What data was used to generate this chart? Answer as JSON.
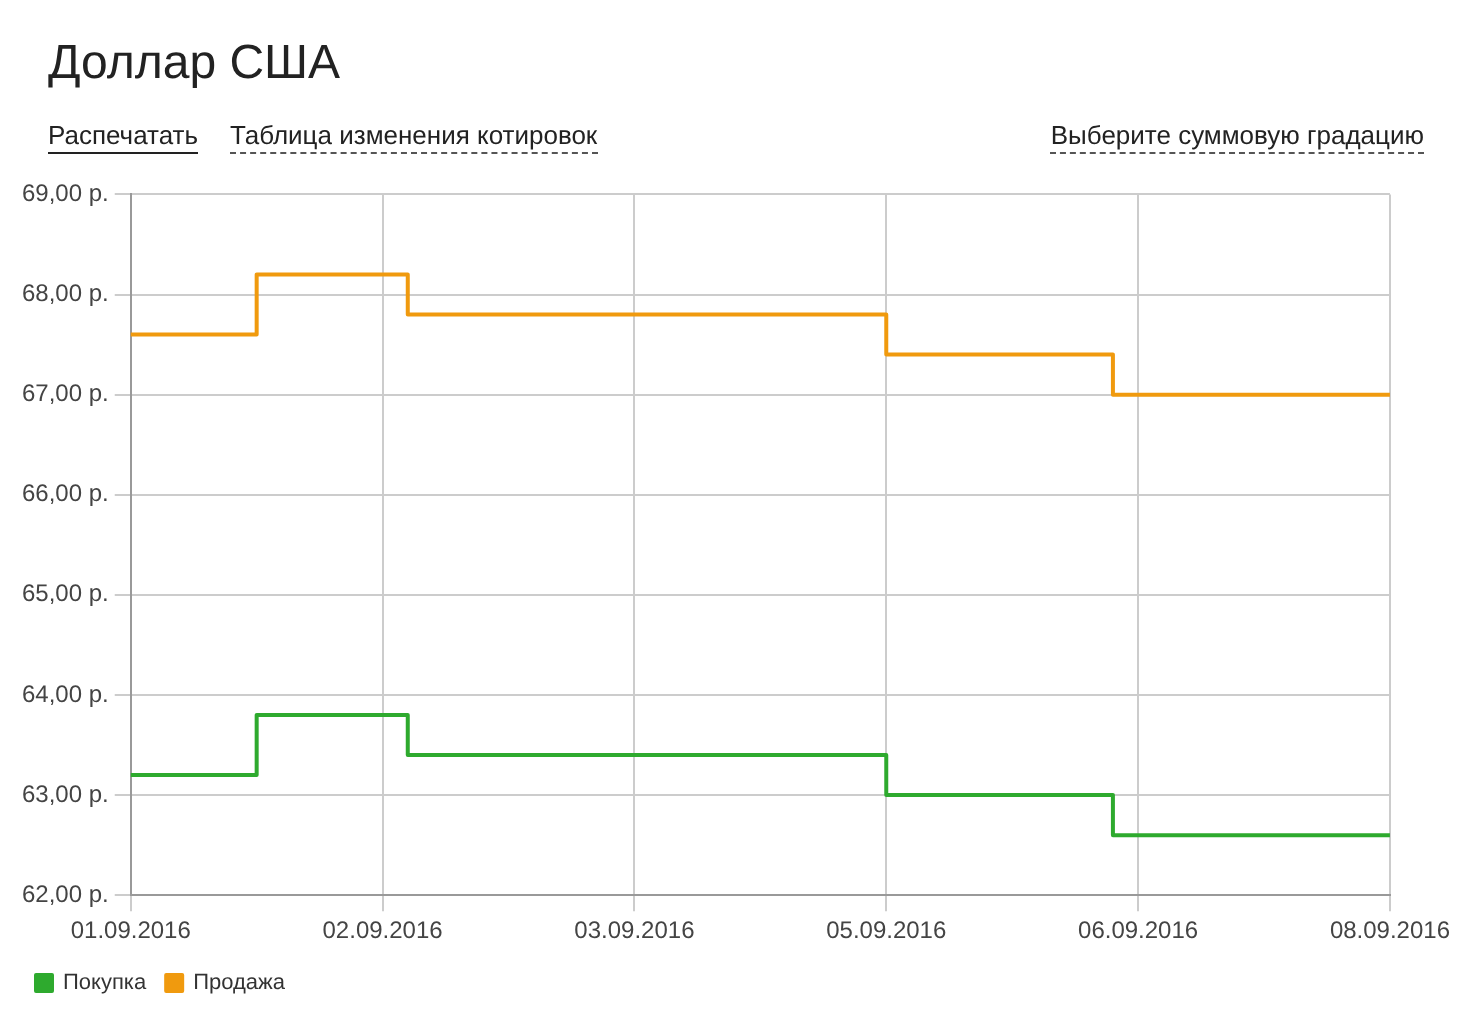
{
  "chart_data": {
    "type": "step",
    "title": "Доллар США",
    "annotations": [
      "Распечатать",
      "Таблица изменения котировок",
      "Выберите суммовую градацию"
    ],
    "categories": [
      "01.09.2016",
      null,
      null,
      null,
      null,
      null,
      null,
      null,
      null,
      null,
      "02.09.2016",
      null,
      null,
      null,
      null,
      null,
      null,
      null,
      null,
      null,
      "03.09.2016",
      null,
      null,
      null,
      null,
      null,
      null,
      null,
      null,
      null,
      "05.09.2016",
      null,
      null,
      null,
      null,
      null,
      null,
      null,
      null,
      null,
      "06.09.2016",
      null,
      null,
      null,
      null,
      null,
      null,
      null,
      null,
      null,
      "08.09.2016"
    ],
    "series": [
      {
        "name": "Покупка",
        "color": "#2eaa2e",
        "values": [
          63.2,
          63.2,
          63.2,
          63.2,
          63.2,
          63.8,
          63.8,
          63.8,
          63.8,
          63.8,
          63.8,
          63.4,
          63.4,
          63.4,
          63.4,
          63.4,
          63.4,
          63.4,
          63.4,
          63.4,
          63.4,
          63.4,
          63.4,
          63.4,
          63.4,
          63.4,
          63.4,
          63.4,
          63.4,
          63.4,
          63.0,
          63.0,
          63.0,
          63.0,
          63.0,
          63.0,
          63.0,
          63.0,
          63.0,
          62.6,
          62.6,
          62.6,
          62.6,
          62.6,
          62.6,
          62.6,
          62.6,
          62.6,
          62.6,
          62.6,
          62.6
        ]
      },
      {
        "name": "Продажа",
        "color": "#f09a0e",
        "values": [
          67.6,
          67.6,
          67.6,
          67.6,
          67.6,
          68.2,
          68.2,
          68.2,
          68.2,
          68.2,
          68.2,
          67.8,
          67.8,
          67.8,
          67.8,
          67.8,
          67.8,
          67.8,
          67.8,
          67.8,
          67.8,
          67.8,
          67.8,
          67.8,
          67.8,
          67.8,
          67.8,
          67.8,
          67.8,
          67.8,
          67.4,
          67.4,
          67.4,
          67.4,
          67.4,
          67.4,
          67.4,
          67.4,
          67.4,
          67.0,
          67.0,
          67.0,
          67.0,
          67.0,
          67.0,
          67.0,
          67.0,
          67.0,
          67.0,
          67.0,
          67.0
        ]
      }
    ],
    "ylim": [
      62,
      69
    ],
    "yticks": [
      {
        "value": 62,
        "label": "62,00 р."
      },
      {
        "value": 63,
        "label": "63,00 р."
      },
      {
        "value": 64,
        "label": "64,00 р."
      },
      {
        "value": 65,
        "label": "65,00 р."
      },
      {
        "value": 66,
        "label": "66,00 р."
      },
      {
        "value": 67,
        "label": "67,00 р."
      },
      {
        "value": 68,
        "label": "68,00 р."
      },
      {
        "value": 69,
        "label": "69,00 р."
      }
    ],
    "grid": true,
    "legend": "bottom left",
    "marker": "none",
    "line_style": "solid"
  }
}
